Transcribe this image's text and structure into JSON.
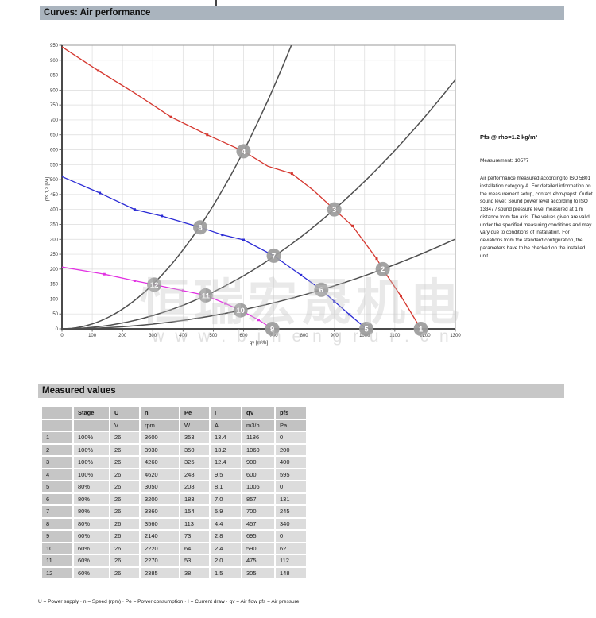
{
  "title_bar": {
    "label": "Curves: Air performance"
  },
  "section_bar": {
    "label": "Measured values"
  },
  "side_panel": {
    "pfs_note": "Pfs @ rho=1.2 kg/m³",
    "measurement": "Measurement: 10577",
    "description": "Air performance measured according to ISO 5801 installation category A. For detailed information on the measurement setup, contact ebm-papst. Outlet sound level: Sound power level according to ISO 13347 / sound pressure level measured at 1 m distance from fan axis. The values given are valid under the specified measuring conditions and may vary due to conditions of installation. For deviations from the standard configuration, the parameters have to be checked on the installed unit."
  },
  "watermark": {
    "line1": "恒瑞宏晟机电",
    "line2": "w w w . b j h e n g r u i . c n"
  },
  "chart_data": {
    "type": "line",
    "title": "Curves: Air performance",
    "xlabel": "qv [m³/h]",
    "ylabel": "pfs 1,2 [Pa]",
    "xlim": [
      0,
      1300
    ],
    "xtick_step": 100,
    "ylim": [
      0,
      950
    ],
    "ytick_step": 50,
    "grid": true,
    "grid_color": "#dcdcdc",
    "frame_color": "#9a9a9a",
    "axis_color": "#4a4a4a",
    "marker_color": "#9c9c9c",
    "series": [
      {
        "name": "fan-curve-100pct",
        "color": "#d5362e",
        "points": [
          [
            0,
            945
          ],
          [
            120,
            865
          ],
          [
            240,
            790
          ],
          [
            360,
            710
          ],
          [
            480,
            650
          ],
          [
            600,
            595
          ],
          [
            680,
            545
          ],
          [
            760,
            520
          ],
          [
            830,
            465
          ],
          [
            900,
            400
          ],
          [
            960,
            345
          ],
          [
            1040,
            235
          ],
          [
            1060,
            200
          ],
          [
            1120,
            110
          ],
          [
            1186,
            0
          ]
        ],
        "tick_points": [
          [
            120,
            865
          ],
          [
            360,
            710
          ],
          [
            480,
            650
          ],
          [
            760,
            520
          ],
          [
            960,
            345
          ],
          [
            1040,
            235
          ],
          [
            1120,
            110
          ]
        ]
      },
      {
        "name": "fan-curve-80pct",
        "color": "#2b2bd5",
        "points": [
          [
            0,
            510
          ],
          [
            125,
            455
          ],
          [
            240,
            400
          ],
          [
            330,
            378
          ],
          [
            457,
            340
          ],
          [
            530,
            315
          ],
          [
            600,
            298
          ],
          [
            700,
            245
          ],
          [
            790,
            180
          ],
          [
            857,
            131
          ],
          [
            900,
            92
          ],
          [
            950,
            48
          ],
          [
            1006,
            0
          ]
        ],
        "tick_points": [
          [
            125,
            455
          ],
          [
            240,
            400
          ],
          [
            330,
            378
          ],
          [
            530,
            315
          ],
          [
            600,
            298
          ],
          [
            790,
            180
          ],
          [
            900,
            92
          ],
          [
            950,
            48
          ]
        ]
      },
      {
        "name": "fan-curve-60pct",
        "color": "#e232e2",
        "points": [
          [
            0,
            207
          ],
          [
            140,
            183
          ],
          [
            240,
            161
          ],
          [
            305,
            148
          ],
          [
            400,
            128
          ],
          [
            475,
            112
          ],
          [
            540,
            85
          ],
          [
            590,
            62
          ],
          [
            650,
            30
          ],
          [
            695,
            0
          ]
        ],
        "tick_points": [
          [
            140,
            183
          ],
          [
            240,
            161
          ],
          [
            400,
            128
          ],
          [
            540,
            85
          ],
          [
            650,
            30
          ]
        ]
      }
    ],
    "load_lines": [
      {
        "name": "load-line-1",
        "k": 0.001653,
        "q_end": 758
      },
      {
        "name": "load-line-2",
        "k": 0.000494,
        "q_end": 1300
      },
      {
        "name": "load-line-3",
        "k": 0.000178,
        "q_end": 1300
      }
    ],
    "operating_points": [
      {
        "label": "1",
        "q": 1186,
        "p": 0
      },
      {
        "label": "2",
        "q": 1060,
        "p": 200
      },
      {
        "label": "3",
        "q": 900,
        "p": 400
      },
      {
        "label": "4",
        "q": 600,
        "p": 595
      },
      {
        "label": "5",
        "q": 1006,
        "p": 0
      },
      {
        "label": "6",
        "q": 857,
        "p": 131
      },
      {
        "label": "7",
        "q": 700,
        "p": 245
      },
      {
        "label": "8",
        "q": 457,
        "p": 340
      },
      {
        "label": "9",
        "q": 695,
        "p": 0
      },
      {
        "label": "10",
        "q": 590,
        "p": 62
      },
      {
        "label": "11",
        "q": 475,
        "p": 112
      },
      {
        "label": "12",
        "q": 305,
        "p": 148
      }
    ]
  },
  "measured_values": {
    "section_title": "Measured values",
    "columns": [
      "",
      "Stage",
      "U",
      "n",
      "Pe",
      "I",
      "qV",
      "pfs"
    ],
    "units": [
      "",
      "",
      "V",
      "rpm",
      "W",
      "A",
      "m3/h",
      "Pa"
    ],
    "rows": [
      [
        "1",
        "100%",
        "26",
        "3600",
        "353",
        "13.4",
        "1186",
        "0"
      ],
      [
        "2",
        "100%",
        "26",
        "3930",
        "350",
        "13.2",
        "1060",
        "200"
      ],
      [
        "3",
        "100%",
        "26",
        "4260",
        "325",
        "12.4",
        "900",
        "400"
      ],
      [
        "4",
        "100%",
        "26",
        "4620",
        "248",
        "9.5",
        "600",
        "595"
      ],
      [
        "5",
        "80%",
        "26",
        "3050",
        "208",
        "8.1",
        "1006",
        "0"
      ],
      [
        "6",
        "80%",
        "26",
        "3200",
        "183",
        "7.0",
        "857",
        "131"
      ],
      [
        "7",
        "80%",
        "26",
        "3360",
        "154",
        "5.9",
        "700",
        "245"
      ],
      [
        "8",
        "80%",
        "26",
        "3560",
        "113",
        "4.4",
        "457",
        "340"
      ],
      [
        "9",
        "60%",
        "26",
        "2140",
        "73",
        "2.8",
        "695",
        "0"
      ],
      [
        "10",
        "60%",
        "26",
        "2220",
        "64",
        "2.4",
        "590",
        "62"
      ],
      [
        "11",
        "60%",
        "26",
        "2270",
        "53",
        "2.0",
        "475",
        "112"
      ],
      [
        "12",
        "60%",
        "26",
        "2385",
        "38",
        "1.5",
        "305",
        "148"
      ]
    ]
  },
  "footer": {
    "legend": "U = Power supply · n = Speed (rpm) · Pe = Power consumption · I = Current draw · qv = Air flow pfs = Air pressure"
  }
}
